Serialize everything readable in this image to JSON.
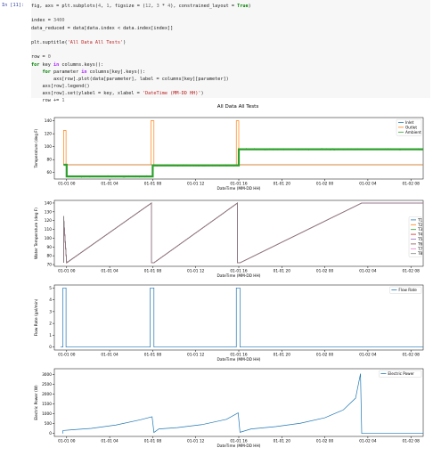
{
  "cell": {
    "prompt": "In [11]:",
    "code_lines": [
      [
        [
          "t",
          "fig, axs = plt.subplots("
        ],
        [
          "n",
          "4"
        ],
        [
          "t",
          ", "
        ],
        [
          "n",
          "1"
        ],
        [
          "t",
          ", figsize = ("
        ],
        [
          "n",
          "12"
        ],
        [
          "t",
          ", "
        ],
        [
          "n",
          "3"
        ],
        [
          "t",
          " * "
        ],
        [
          "n",
          "4"
        ],
        [
          "t",
          "), constrained_layout = "
        ],
        [
          "k",
          "True"
        ],
        [
          "t",
          ")"
        ]
      ],
      [],
      [
        [
          "t",
          "index = "
        ],
        [
          "n",
          "3400"
        ]
      ],
      [
        [
          "t",
          "data_reduced = data[data.index < data.index[index]]"
        ]
      ],
      [],
      [
        [
          "t",
          "plt.suptitle("
        ],
        [
          "s",
          "'All Data All Tests'"
        ],
        [
          "t",
          ")"
        ]
      ],
      [],
      [
        [
          "t",
          "row = "
        ],
        [
          "n",
          "0"
        ]
      ],
      [
        [
          "k",
          "for"
        ],
        [
          "t",
          " key "
        ],
        [
          "o",
          "in"
        ],
        [
          "t",
          " columns.keys():"
        ]
      ],
      [
        [
          "t",
          "    "
        ],
        [
          "k",
          "for"
        ],
        [
          "t",
          " parameter "
        ],
        [
          "o",
          "in"
        ],
        [
          "t",
          " columns[key].keys():"
        ]
      ],
      [
        [
          "t",
          "        axs[row].plot(data[parameter], label = columns[key][parameter])"
        ]
      ],
      [
        [
          "t",
          "    axs[row].legend()"
        ]
      ],
      [
        [
          "t",
          "    axs[row].set(ylabel = key, xlabel = "
        ],
        [
          "s",
          "'DateTime (MM-DD HH)'"
        ],
        [
          "t",
          ")"
        ]
      ],
      [
        [
          "t",
          "    row += "
        ],
        [
          "n",
          "1"
        ]
      ]
    ]
  },
  "colors": {
    "blue": "#1f77b4",
    "orange": "#ff7f0e",
    "green": "#2ca02c",
    "red": "#d62728",
    "purple": "#9467bd",
    "brown": "#8c564b",
    "pink": "#e377c2",
    "gray": "#7f7f7f"
  },
  "figure": {
    "suptitle": "All Data All Tests"
  },
  "chart_data": [
    {
      "type": "line",
      "ylabel": "Temperature (deg F)",
      "xlabel": "DateTime (MM-DD HH)",
      "x_ticks": [
        "01-01 00",
        "01-01 04",
        "01-01 08",
        "01-01 12",
        "01-01 16",
        "01-01 20",
        "01-02 00",
        "01-02 04",
        "01-02 08"
      ],
      "y_ticks": [
        60,
        80,
        100,
        120,
        140
      ],
      "xlim": [
        -2,
        58
      ],
      "ylim": [
        50,
        145
      ],
      "legend_position": "top-right",
      "series": [
        {
          "name": "Inlet",
          "color": "blue",
          "x": [
            -0.5,
            58
          ],
          "y": [
            72,
            72
          ]
        },
        {
          "name": "Outlet",
          "color": "orange",
          "x": [
            -0.5,
            -0.5,
            -0.1,
            -0.1,
            13.7,
            13.7,
            14.2,
            14.2,
            27.6,
            27.6,
            28.0,
            28.0,
            58
          ],
          "y": [
            72,
            125,
            125,
            72,
            72,
            140,
            140,
            72,
            72,
            140,
            140,
            72,
            72
          ]
        },
        {
          "name": "Ambient",
          "color": "green",
          "x": [
            -0.5,
            0,
            0,
            14,
            14,
            28,
            28,
            58
          ],
          "y": [
            72,
            72,
            54,
            54,
            71,
            71,
            96,
            96
          ],
          "noisy": true
        }
      ]
    },
    {
      "type": "line",
      "ylabel": "Water Temperature (deg F)",
      "xlabel": "DateTime (MM-DD HH)",
      "x_ticks": [
        "01-01 00",
        "01-01 04",
        "01-01 08",
        "01-01 12",
        "01-01 16",
        "01-01 20",
        "01-02 00",
        "01-02 04",
        "01-02 08"
      ],
      "y_ticks": [
        70,
        80,
        90,
        100,
        110,
        120,
        130,
        140
      ],
      "xlim": [
        -2,
        58
      ],
      "ylim": [
        68,
        143
      ],
      "legend_position": "right",
      "series_names": [
        "T1",
        "T2",
        "T3",
        "T4",
        "T5",
        "T6",
        "T7",
        "T8"
      ],
      "series_colors": [
        "blue",
        "orange",
        "green",
        "red",
        "purple",
        "brown",
        "pink",
        "gray"
      ],
      "x": [
        -0.5,
        -0.5,
        0,
        13.8,
        13.8,
        14.2,
        27.8,
        27.8,
        28.2,
        48,
        58
      ],
      "y": [
        72,
        125,
        72,
        140,
        72,
        72,
        140,
        72,
        72,
        140,
        140
      ]
    },
    {
      "type": "line",
      "ylabel": "Flow Rate (gal/min)",
      "xlabel": "DateTime (MM-DD HH)",
      "x_ticks": [
        "01-01 00",
        "01-01 04",
        "01-01 08",
        "01-01 12",
        "01-01 16",
        "01-01 20",
        "01-02 00",
        "01-02 04",
        "01-02 08"
      ],
      "y_ticks": [
        0,
        1,
        2,
        3,
        4,
        5
      ],
      "xlim": [
        -2,
        58
      ],
      "ylim": [
        -0.25,
        5.25
      ],
      "legend_position": "top-right",
      "series": [
        {
          "name": "Flow Rate",
          "color": "blue",
          "x": [
            -1,
            -0.6,
            -0.6,
            -0.1,
            -0.1,
            13.6,
            13.6,
            14.2,
            14.2,
            27.6,
            27.6,
            28.2,
            28.2,
            58
          ],
          "y": [
            0,
            0,
            5,
            5,
            0,
            0,
            5,
            5,
            0,
            0,
            5,
            5,
            0,
            0
          ]
        }
      ]
    },
    {
      "type": "line",
      "ylabel": "Electric Power (W)",
      "xlabel": "DateTime (MM-DD HH)",
      "x_ticks": [
        "01-01 00",
        "01-01 04",
        "01-01 08",
        "01-01 12",
        "01-01 16",
        "01-01 20",
        "01-02 00",
        "01-02 04",
        "01-02 08"
      ],
      "y_ticks": [
        0,
        500,
        1000,
        1500,
        2000,
        2500,
        3000
      ],
      "xlim": [
        -2,
        58
      ],
      "ylim": [
        -150,
        3300
      ],
      "legend_position": "top-right",
      "series": [
        {
          "name": "Electric Power",
          "color": "blue",
          "x": [
            -0.6,
            -0.6,
            1,
            4,
            8,
            12,
            13.9,
            14.2,
            15,
            18,
            22,
            26,
            27.9,
            28.2,
            30,
            34,
            38,
            42,
            45,
            47,
            47.8,
            48,
            58
          ],
          "y": [
            0,
            150,
            190,
            260,
            430,
            700,
            850,
            50,
            230,
            300,
            450,
            720,
            1050,
            60,
            230,
            350,
            520,
            800,
            1200,
            1800,
            3050,
            0,
            0
          ]
        }
      ]
    }
  ]
}
